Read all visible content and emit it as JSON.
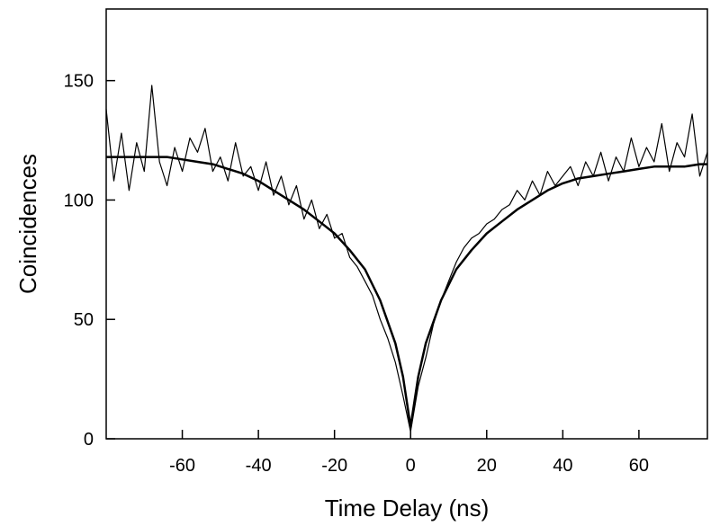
{
  "chart_data": {
    "type": "line",
    "title": "",
    "xlabel": "Time Delay (ns)",
    "ylabel": "Coincidences",
    "xlim": [
      -80,
      78
    ],
    "ylim": [
      0,
      180
    ],
    "xticks": [
      -60,
      -40,
      -20,
      0,
      20,
      40,
      60
    ],
    "yticks": [
      0,
      50,
      100,
      150
    ],
    "grid": false,
    "legend": "none",
    "colors": {
      "axis": "#000000",
      "data": "#000000",
      "fit": "#000000"
    },
    "measured": {
      "x": [
        -80,
        -78,
        -76,
        -74,
        -72,
        -70,
        -68,
        -66,
        -64,
        -62,
        -60,
        -58,
        -56,
        -54,
        -52,
        -50,
        -48,
        -46,
        -44,
        -42,
        -40,
        -38,
        -36,
        -34,
        -32,
        -30,
        -28,
        -26,
        -24,
        -22,
        -20,
        -18,
        -16,
        -14,
        -12,
        -10,
        -8,
        -6,
        -4,
        -2,
        0,
        2,
        4,
        6,
        8,
        10,
        12,
        14,
        16,
        18,
        20,
        22,
        24,
        26,
        28,
        30,
        32,
        34,
        36,
        38,
        40,
        42,
        44,
        46,
        48,
        50,
        52,
        54,
        56,
        58,
        60,
        62,
        64,
        66,
        68,
        70,
        72,
        74,
        76,
        78
      ],
      "y": [
        138,
        108,
        128,
        104,
        124,
        112,
        148,
        116,
        106,
        122,
        112,
        126,
        120,
        130,
        112,
        118,
        108,
        124,
        110,
        114,
        104,
        116,
        102,
        110,
        98,
        106,
        92,
        100,
        88,
        94,
        84,
        86,
        76,
        72,
        66,
        60,
        50,
        42,
        32,
        18,
        3,
        22,
        34,
        48,
        58,
        66,
        74,
        80,
        84,
        86,
        90,
        92,
        96,
        98,
        104,
        100,
        108,
        102,
        112,
        106,
        110,
        114,
        106,
        116,
        110,
        120,
        108,
        118,
        112,
        126,
        114,
        122,
        116,
        132,
        112,
        124,
        118,
        136,
        110,
        120
      ]
    },
    "fit": {
      "x": [
        -80,
        -76,
        -72,
        -68,
        -64,
        -60,
        -56,
        -52,
        -48,
        -44,
        -40,
        -36,
        -32,
        -28,
        -24,
        -20,
        -16,
        -12,
        -8,
        -4,
        -2,
        0,
        2,
        4,
        8,
        12,
        16,
        20,
        24,
        28,
        32,
        36,
        40,
        44,
        48,
        52,
        56,
        60,
        64,
        68,
        72,
        76,
        78
      ],
      "y": [
        118,
        118,
        118,
        118,
        118,
        117,
        116,
        115,
        113,
        111,
        108,
        104,
        100,
        96,
        91,
        86,
        79,
        71,
        58,
        40,
        26,
        5,
        26,
        40,
        58,
        71,
        79,
        86,
        91,
        96,
        100,
        104,
        107,
        109,
        110,
        111,
        112,
        113,
        114,
        114,
        114,
        115,
        115
      ]
    }
  }
}
